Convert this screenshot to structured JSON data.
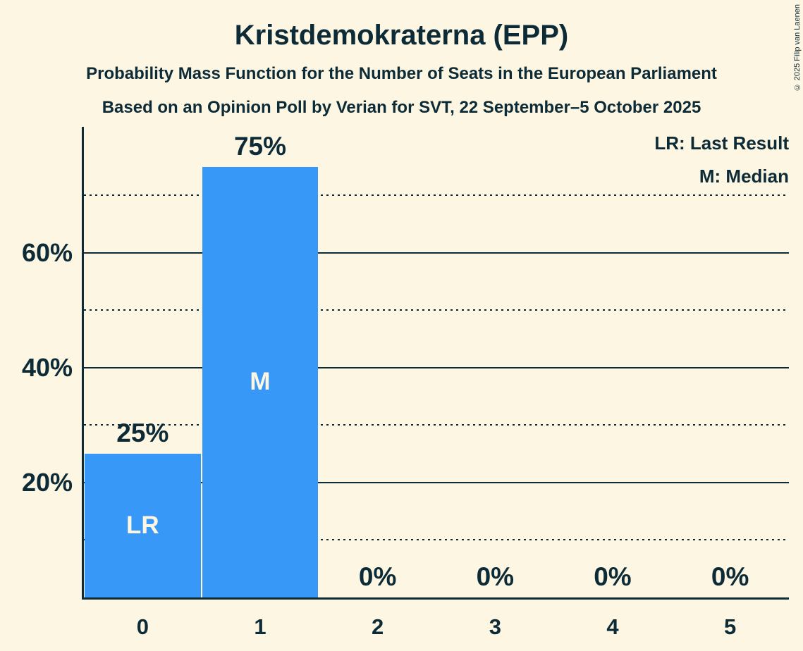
{
  "header": {
    "title": "Kristdemokraterna (EPP)",
    "subtitle1": "Probability Mass Function for the Number of Seats in the European Parliament",
    "subtitle2": "Based on an Opinion Poll by Verian for SVT, 22 September–5 October 2025"
  },
  "copyright": "© 2025 Filip van Laenen",
  "legend": {
    "lines": [
      "LR: Last Result",
      "M: Median"
    ]
  },
  "colors": {
    "background": "#fdf6e3",
    "ink": "#0d2b36",
    "bar": "#3798f8",
    "bar_label": "#fdf6e3"
  },
  "chart_data": {
    "type": "bar",
    "title": "Kristdemokraterna (EPP)",
    "categories": [
      "0",
      "1",
      "2",
      "3",
      "4",
      "5"
    ],
    "values": [
      25,
      75,
      0,
      0,
      0,
      0
    ],
    "value_labels": [
      "25%",
      "75%",
      "0%",
      "0%",
      "0%",
      "0%"
    ],
    "bar_annotations": [
      "LR",
      "M",
      "",
      "",
      "",
      ""
    ],
    "xlabel": "",
    "ylabel": "",
    "ylim": [
      0,
      81.7
    ],
    "y_axis": {
      "tick_values": [
        20,
        40,
        60
      ],
      "tick_labels": [
        "20%",
        "40%",
        "60%"
      ],
      "solid_gridlines": [
        20,
        40,
        60
      ],
      "dotted_gridlines": [
        10,
        30,
        50,
        70
      ]
    },
    "grid": "on",
    "legend_position": "top-right"
  }
}
